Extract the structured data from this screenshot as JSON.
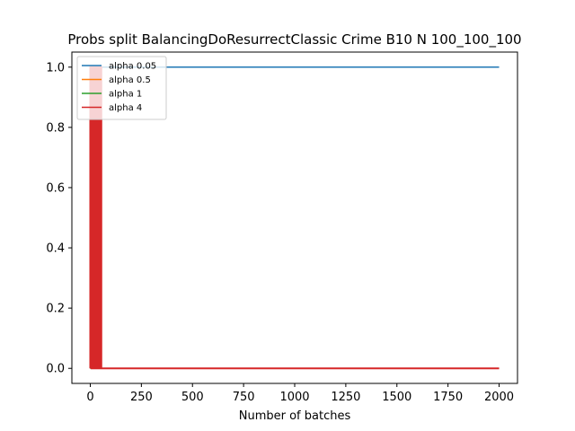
{
  "chart_data": {
    "type": "line",
    "title": "Probs split BalancingDoResurrectClassic Crime B10 N 100_100_100",
    "xlabel": "Number of batches",
    "ylabel": "",
    "xlim": [
      -90,
      2090
    ],
    "ylim": [
      -0.05,
      1.05
    ],
    "xticks": [
      0,
      250,
      500,
      750,
      1000,
      1250,
      1500,
      1750,
      2000
    ],
    "yticks": [
      0.0,
      0.2,
      0.4,
      0.6,
      0.8,
      1.0
    ],
    "xtick_labels": [
      "0",
      "250",
      "500",
      "750",
      "1000",
      "1250",
      "1500",
      "1750",
      "2000"
    ],
    "ytick_labels": [
      "0.0",
      "0.2",
      "0.4",
      "0.6",
      "0.8",
      "1.0"
    ],
    "grid": false,
    "legend_position": "top-left",
    "series": [
      {
        "name": "alpha 0.05",
        "color": "#1f77b4",
        "x": [
          0,
          2000
        ],
        "y": [
          1.0,
          1.0
        ]
      },
      {
        "name": "alpha 0.5",
        "color": "#ff7f0e",
        "x": [
          0,
          2000
        ],
        "y": [
          0.0,
          0.0
        ]
      },
      {
        "name": "alpha 1",
        "color": "#2ca02c",
        "x": [
          0,
          2000
        ],
        "y": [
          0.0,
          0.0
        ]
      },
      {
        "name": "alpha 4",
        "color": "#d62728",
        "x": [
          0,
          0,
          6,
          6,
          12,
          12,
          18,
          18,
          24,
          24,
          30,
          30,
          36,
          36,
          42,
          42,
          48,
          48,
          54,
          54,
          60,
          60,
          2000
        ],
        "y": [
          0.0,
          1.0,
          1.0,
          0.0,
          0.0,
          1.0,
          1.0,
          0.0,
          0.0,
          1.0,
          1.0,
          0.0,
          0.0,
          1.0,
          1.0,
          0.0,
          0.0,
          1.0,
          1.0,
          0.0,
          0.0,
          0.0,
          0.0
        ]
      }
    ]
  }
}
